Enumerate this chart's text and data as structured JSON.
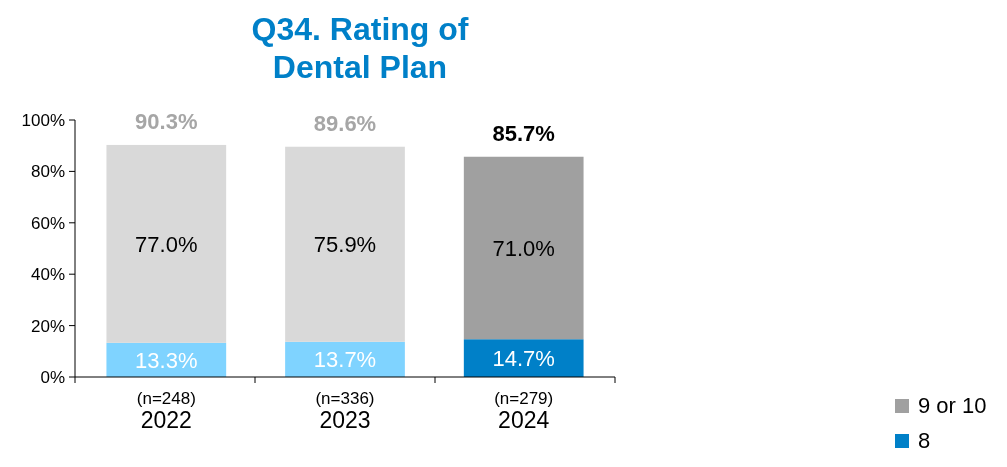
{
  "chart_data": {
    "type": "bar",
    "title": "Q34. Rating of\nDental Plan",
    "stacked": true,
    "categories": [
      "(n=248)\n2022",
      "(n=336)\n2023",
      "(n=279)\n2024"
    ],
    "series": [
      {
        "name": "8",
        "color": "#0080c8",
        "colors": [
          "#7fd3ff",
          "#7fd3ff",
          "#0080c8"
        ],
        "values": [
          13.3,
          13.7,
          14.7
        ],
        "value_labels": [
          "13.3%",
          "13.7%",
          "14.7%"
        ]
      },
      {
        "name": "9 or 10",
        "color": "#a0a0a0",
        "colors": [
          "#d9d9d9",
          "#d9d9d9",
          "#a0a0a0"
        ],
        "values": [
          77.0,
          75.9,
          71.0
        ],
        "value_labels": [
          "77.0%",
          "75.9%",
          "71.0%"
        ]
      }
    ],
    "totals": [
      "90.3%",
      "89.6%",
      "85.7%"
    ],
    "ylim": [
      0,
      100
    ],
    "yticks": [
      {
        "value": 0,
        "label": "0%"
      },
      {
        "value": 20,
        "label": "20%"
      },
      {
        "value": 40,
        "label": "40%"
      },
      {
        "value": 60,
        "label": "60%"
      },
      {
        "value": 80,
        "label": "80%"
      },
      {
        "value": 100,
        "label": "100%"
      }
    ],
    "legend": "bottom right"
  }
}
